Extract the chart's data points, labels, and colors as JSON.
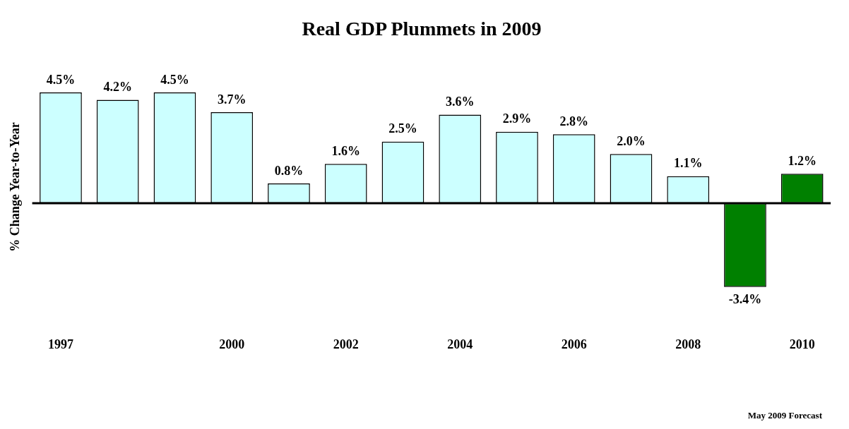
{
  "chart_data": {
    "type": "bar",
    "title": "Real GDP Plummets in 2009",
    "ylabel": "% Change Year-to-Year",
    "categories": [
      "1997",
      null,
      null,
      "2000",
      null,
      "2002",
      null,
      "2004",
      null,
      "2006",
      null,
      "2008",
      null,
      "2010"
    ],
    "values": [
      4.5,
      4.2,
      4.5,
      3.7,
      0.8,
      1.6,
      2.5,
      3.6,
      2.9,
      2.8,
      2.0,
      1.1,
      -3.4,
      1.2
    ],
    "value_labels": [
      "4.5%",
      "4.2%",
      "4.5%",
      "3.7%",
      "0.8%",
      "1.6%",
      "2.5%",
      "3.6%",
      "2.9%",
      "2.8%",
      "2.0%",
      "1.1%",
      "-3.4%",
      "1.2%"
    ],
    "colors": [
      "#ccffff",
      "#ccffff",
      "#ccffff",
      "#ccffff",
      "#ccffff",
      "#ccffff",
      "#ccffff",
      "#ccffff",
      "#ccffff",
      "#ccffff",
      "#ccffff",
      "#ccffff",
      "#008000",
      "#008000"
    ],
    "annotations": [
      "May 2009 Forecast"
    ],
    "grid": false,
    "legend": false
  }
}
